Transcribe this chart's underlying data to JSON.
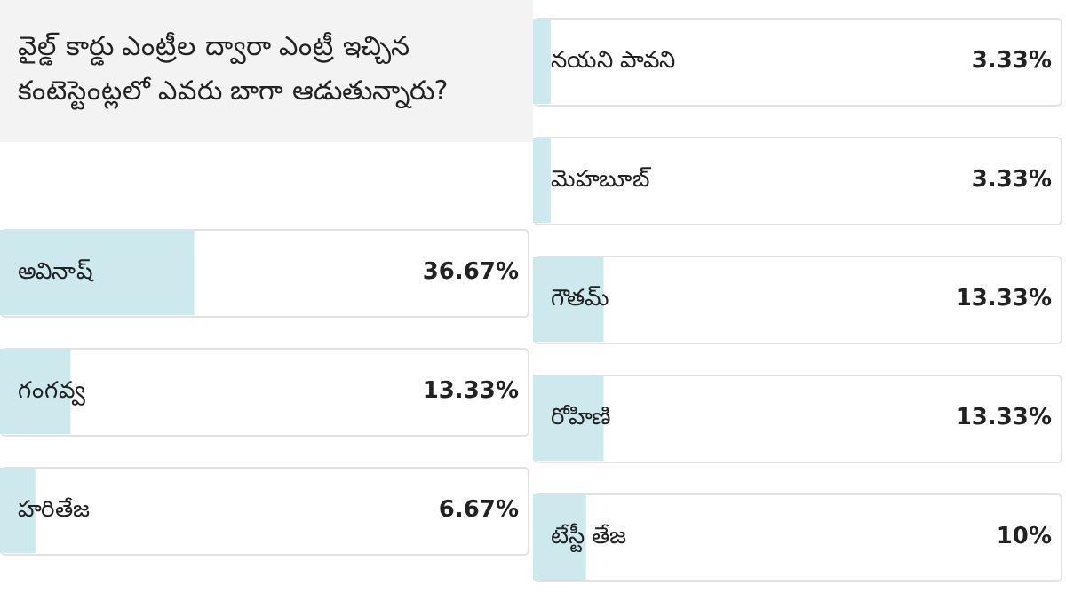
{
  "chart_data": [
    {
      "type": "bar",
      "orientation": "horizontal",
      "title": "వైల్డ్ కార్డు ఎంట్రీల ద్వారా ఎంట్రీ ఇచ్చిన కంటెస్టెంట్లలో ఎవరు బాగా ఆడుతున్నారు?",
      "categories": [
        "అవినాష్",
        "గంగవ్వ",
        "హరితేజ"
      ],
      "values": [
        36.67,
        13.33,
        6.67
      ],
      "value_labels": [
        "36.67%",
        "13.33%",
        "6.67%"
      ],
      "color": "#cde9ee",
      "xlim": [
        0,
        100
      ],
      "tick_labels": "y",
      "grid": false
    },
    {
      "type": "bar",
      "orientation": "horizontal",
      "categories": [
        "నయని పావని",
        "మెహబూబ్",
        "గౌతమ్",
        "రోహిణి",
        "టేస్టీ తేజ"
      ],
      "values": [
        3.33,
        3.33,
        13.33,
        13.33,
        10
      ],
      "value_labels": [
        "3.33%",
        "3.33%",
        "13.33%",
        "13.33%",
        "10%"
      ],
      "color": "#cde9ee",
      "xlim": [
        0,
        100
      ],
      "tick_labels": "y",
      "grid": false
    }
  ]
}
